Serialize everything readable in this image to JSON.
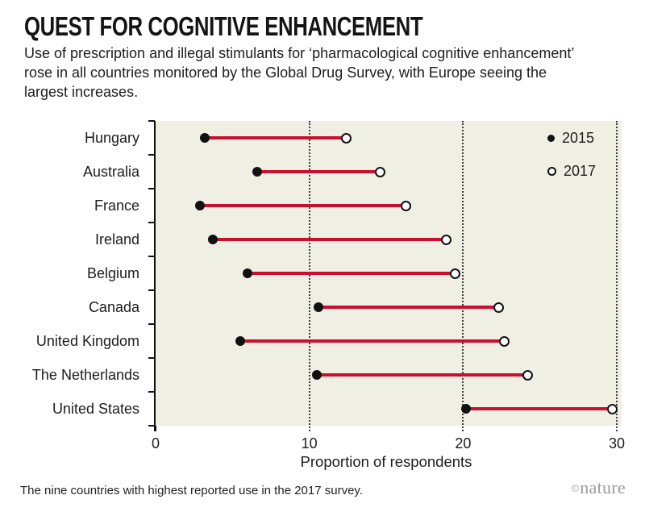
{
  "header": {
    "title": "QUEST FOR COGNITIVE ENHANCEMENT",
    "subtitle": "Use of prescription and illegal stimulants for ‘pharmacological cognitive enhancement’ rose in all countries monitored by the Global Drug Survey, with Europe seeing the largest increases."
  },
  "chart_data": {
    "type": "dumbbell",
    "categories": [
      "Hungary",
      "Australia",
      "France",
      "Ireland",
      "Belgium",
      "Canada",
      "United Kingdom",
      "The Netherlands",
      "United States"
    ],
    "series": [
      {
        "name": "2015",
        "marker": "filled-black-dot",
        "values": [
          3.2,
          6.6,
          2.9,
          3.7,
          6.0,
          10.6,
          5.5,
          10.5,
          20.2
        ]
      },
      {
        "name": "2017",
        "marker": "open-circle",
        "values": [
          12.4,
          14.6,
          16.3,
          18.9,
          19.5,
          22.3,
          22.7,
          24.2,
          29.7
        ]
      }
    ],
    "title": "QUEST FOR COGNITIVE ENHANCEMENT",
    "xlabel": "Proportion of respondents",
    "ylabel": "",
    "xlim": [
      0,
      30
    ],
    "xticks": [
      0,
      10,
      20,
      30
    ],
    "grid": "dotted vertical gridlines at 10, 20, 30",
    "legend_position": "top-right inside plot",
    "connector_color": "#c8102e",
    "plot_bg": "#f0efe4",
    "marker_2015_color": "#111111",
    "marker_2017_fill": "#ffffff"
  },
  "footer": {
    "note": "The nine countries with highest reported use in the 2017 survey.",
    "copyright": "©",
    "brand": "nature"
  }
}
